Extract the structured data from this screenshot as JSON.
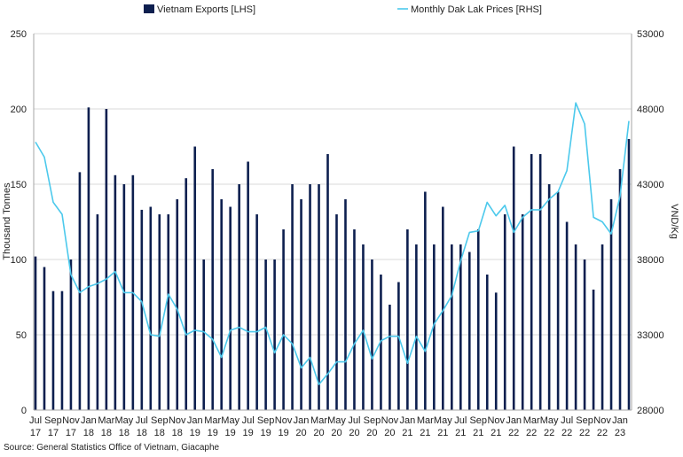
{
  "chart_data": {
    "type": "bar+line",
    "title": "",
    "categories": [
      "Jul 17",
      "Aug 17",
      "Sep 17",
      "Oct 17",
      "Nov 17",
      "Dec 17",
      "Jan 18",
      "Feb 18",
      "Mar 18",
      "Apr 18",
      "May 18",
      "Jun 18",
      "Jul 18",
      "Aug 18",
      "Sep 18",
      "Oct 18",
      "Nov 18",
      "Dec 18",
      "Jan 19",
      "Feb 19",
      "Mar 19",
      "Apr 19",
      "May 19",
      "Jun 19",
      "Jul 19",
      "Aug 19",
      "Sep 19",
      "Oct 19",
      "Nov 19",
      "Dec 19",
      "Jan 20",
      "Feb 20",
      "Mar 20",
      "Apr 20",
      "May 20",
      "Jun 20",
      "Jul 20",
      "Aug 20",
      "Sep 20",
      "Oct 20",
      "Nov 20",
      "Dec 20",
      "Jan 21",
      "Feb 21",
      "Mar 21",
      "Apr 21",
      "May 21",
      "Jun 21",
      "Jul 21",
      "Aug 21",
      "Sep 21",
      "Oct 21",
      "Nov 21",
      "Dec 21",
      "Jan 22",
      "Feb 22",
      "Mar 22",
      "Apr 22",
      "May 22",
      "Jun 22",
      "Jul 22",
      "Aug 22",
      "Sep 22",
      "Oct 22",
      "Nov 22",
      "Dec 22",
      "Jan 23",
      "Feb 23"
    ],
    "x_tick_labels": [
      {
        "m": "Jul",
        "y": "17"
      },
      {
        "m": "Sep",
        "y": "17"
      },
      {
        "m": "Nov",
        "y": "17"
      },
      {
        "m": "Jan",
        "y": "18"
      },
      {
        "m": "Mar",
        "y": "18"
      },
      {
        "m": "May",
        "y": "18"
      },
      {
        "m": "Jul",
        "y": "18"
      },
      {
        "m": "Sep",
        "y": "18"
      },
      {
        "m": "Nov",
        "y": "18"
      },
      {
        "m": "Jan",
        "y": "19"
      },
      {
        "m": "Mar",
        "y": "19"
      },
      {
        "m": "May",
        "y": "19"
      },
      {
        "m": "Jul",
        "y": "19"
      },
      {
        "m": "Sep",
        "y": "19"
      },
      {
        "m": "Nov",
        "y": "19"
      },
      {
        "m": "Jan",
        "y": "20"
      },
      {
        "m": "Mar",
        "y": "20"
      },
      {
        "m": "May",
        "y": "20"
      },
      {
        "m": "Jul",
        "y": "20"
      },
      {
        "m": "Sep",
        "y": "20"
      },
      {
        "m": "Nov",
        "y": "20"
      },
      {
        "m": "Jan",
        "y": "21"
      },
      {
        "m": "Mar",
        "y": "21"
      },
      {
        "m": "May",
        "y": "21"
      },
      {
        "m": "Jul",
        "y": "21"
      },
      {
        "m": "Sep",
        "y": "21"
      },
      {
        "m": "Nov",
        "y": "21"
      },
      {
        "m": "Jan",
        "y": "22"
      },
      {
        "m": "Mar",
        "y": "22"
      },
      {
        "m": "May",
        "y": "22"
      },
      {
        "m": "Jul",
        "y": "22"
      },
      {
        "m": "Sep",
        "y": "22"
      },
      {
        "m": "Nov",
        "y": "22"
      },
      {
        "m": "Jan",
        "y": "23"
      }
    ],
    "series": [
      {
        "name": "Vietnam Exports [LHS]",
        "type": "bar",
        "axis": "left",
        "color": "#0d1f4f",
        "values": [
          102,
          95,
          79,
          79,
          100,
          158,
          201,
          130,
          200,
          156,
          150,
          156,
          133,
          135,
          130,
          130,
          140,
          154,
          175,
          100,
          160,
          140,
          135,
          150,
          165,
          130,
          100,
          100,
          120,
          150,
          140,
          150,
          150,
          170,
          130,
          140,
          120,
          110,
          100,
          90,
          70,
          85,
          120,
          110,
          145,
          110,
          135,
          110,
          110,
          105,
          120,
          90,
          78,
          130,
          175,
          130,
          170,
          170,
          150,
          145,
          125,
          110,
          100,
          80,
          110,
          140,
          160,
          180
        ]
      },
      {
        "name": "Monthly Dak Lak Prices [RHS]",
        "type": "line",
        "axis": "right",
        "color": "#4cc9ec",
        "values": [
          45800,
          44800,
          41800,
          41000,
          37000,
          35800,
          36200,
          36400,
          36700,
          37200,
          35800,
          35800,
          35200,
          33000,
          32900,
          35700,
          34700,
          33000,
          33300,
          33200,
          32700,
          31500,
          33300,
          33500,
          33200,
          33200,
          33500,
          31800,
          33000,
          32400,
          30800,
          31500,
          29700,
          30400,
          31200,
          31200,
          32400,
          33300,
          31400,
          32600,
          32900,
          32900,
          31100,
          32900,
          31900,
          33700,
          34600,
          35600,
          37900,
          39800,
          39900,
          41800,
          40900,
          41600,
          39800,
          40800,
          41300,
          41300,
          42000,
          42500,
          43900,
          48400,
          47000,
          40800,
          40500,
          39700,
          42200,
          47200
        ]
      }
    ],
    "left_axis": {
      "label": "Thousand Tonnes",
      "min": 0,
      "max": 250,
      "ticks": [
        "0",
        "50",
        "100",
        "150",
        "200",
        "250"
      ]
    },
    "right_axis": {
      "label": "VND/Kg",
      "min": 28000,
      "max": 53000,
      "ticks": [
        "28000",
        "33000",
        "38000",
        "43000",
        "48000",
        "53000"
      ]
    },
    "grid": true,
    "legend_position": "top"
  },
  "source_text": "Source: General Statistics Office of Vietnam, Giacaphe"
}
